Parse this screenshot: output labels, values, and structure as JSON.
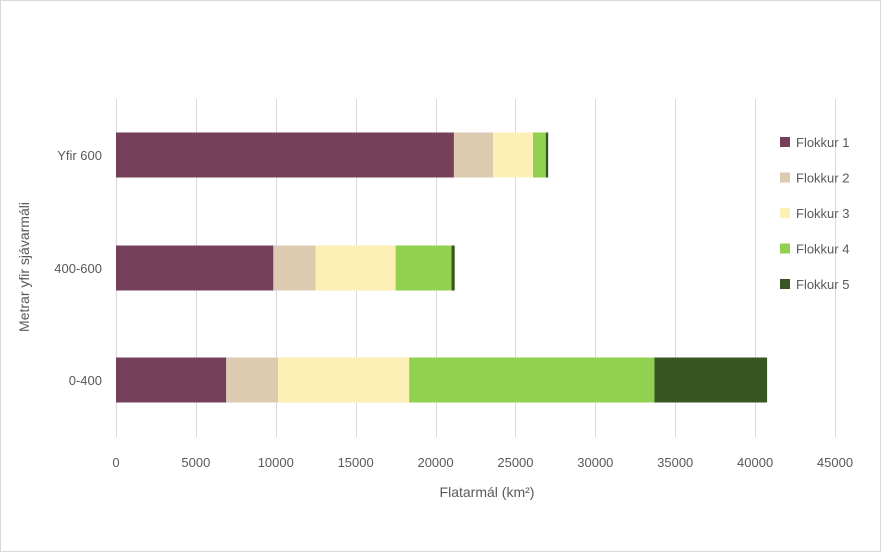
{
  "chart_data": {
    "type": "bar",
    "orientation": "horizontal",
    "stacked": true,
    "categories": [
      "Yfir 600",
      "400-600",
      "0-400"
    ],
    "series": [
      {
        "name": "Flokkur 1",
        "values": [
          21150,
          9850,
          6900
        ]
      },
      {
        "name": "Flokkur 2",
        "values": [
          2450,
          2650,
          3250
        ]
      },
      {
        "name": "Flokkur 3",
        "values": [
          2500,
          5000,
          8200
        ]
      },
      {
        "name": "Flokkur 4",
        "values": [
          800,
          3500,
          15350
        ]
      },
      {
        "name": "Flokkur 5",
        "values": [
          150,
          200,
          7050
        ]
      }
    ],
    "colors": [
      "#763f59",
      "#dccbb0",
      "#fdf0b4",
      "#92d050",
      "#375623"
    ],
    "xlabel": "Flatarmál (km²)",
    "ylabel": "Metrar yfir sjávarmáli",
    "xlim": [
      0,
      45000
    ],
    "xticks": [
      "0",
      "5000",
      "10000",
      "15000",
      "20000",
      "25000",
      "30000",
      "35000",
      "40000",
      "45000"
    ],
    "grid": "vertical",
    "legend": "right"
  }
}
